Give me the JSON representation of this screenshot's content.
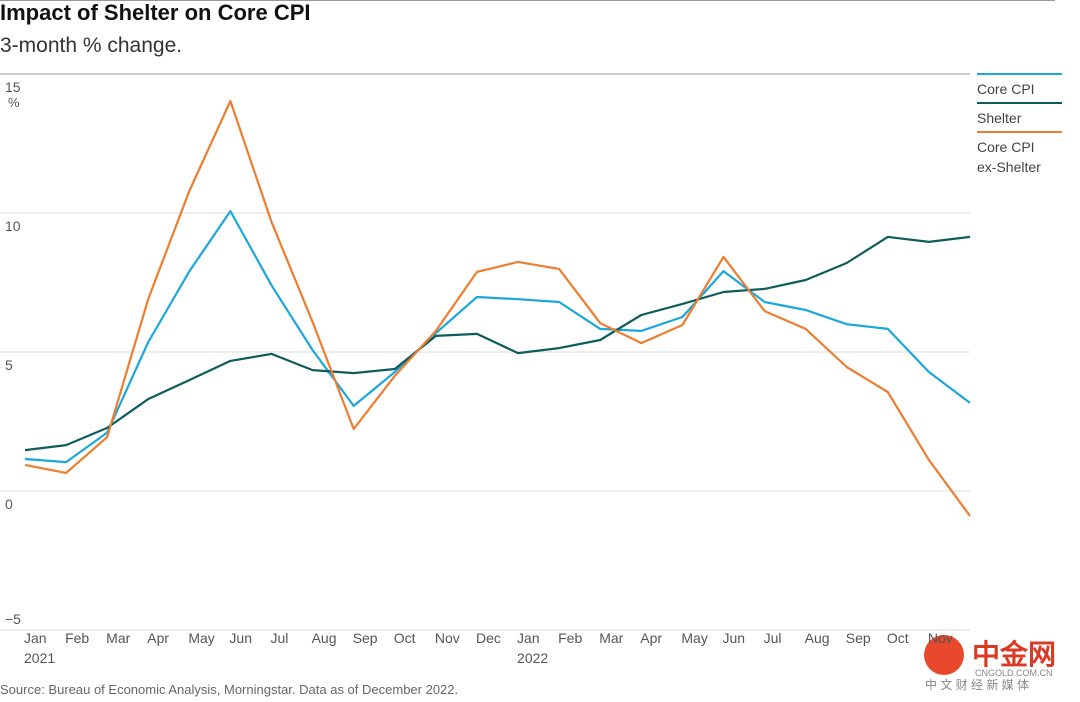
{
  "chart_data": {
    "type": "line",
    "title": "Impact of Shelter on Core CPI",
    "subtitle": "3-month % change.",
    "y_unit": "%",
    "source": "Source: Bureau of Economic Analysis, Morningstar. Data as of December 2022.",
    "categories": [
      "Jan",
      "Feb",
      "Mar",
      "Apr",
      "May",
      "Jun",
      "Jul",
      "Aug",
      "Sep",
      "Oct",
      "Nov",
      "Dec",
      "Jan",
      "Feb",
      "Mar",
      "Apr",
      "May",
      "Jun",
      "Jul",
      "Aug",
      "Sep",
      "Oct",
      "Nov",
      null
    ],
    "category_years": [
      "2021",
      null,
      null,
      null,
      null,
      null,
      null,
      null,
      null,
      null,
      null,
      null,
      "2022",
      null,
      null,
      null,
      null,
      null,
      null,
      null,
      null,
      null,
      null,
      null
    ],
    "ylim": [
      -5,
      15
    ],
    "yticks": [
      {
        "value": -5,
        "label": "−5"
      },
      0,
      5,
      10,
      15
    ],
    "grid": true,
    "legend": "right",
    "series": [
      {
        "name": "Core CPI",
        "color": "#1ba7dd",
        "values": [
          1.15,
          1.04,
          2.1,
          5.36,
          7.9,
          10.07,
          7.4,
          5.07,
          3.06,
          4.28,
          5.68,
          6.98,
          6.9,
          6.8,
          5.83,
          5.76,
          6.26,
          7.91,
          6.8,
          6.51,
          6.0,
          5.83,
          4.28,
          3.17
        ]
      },
      {
        "name": "Shelter",
        "color": "#0e5c5c",
        "values": [
          1.47,
          1.65,
          2.27,
          3.31,
          3.99,
          4.68,
          4.93,
          4.35,
          4.24,
          4.39,
          5.58,
          5.65,
          4.96,
          5.14,
          5.43,
          6.33,
          6.73,
          7.16,
          7.27,
          7.59,
          8.2,
          9.14,
          8.96,
          9.14
        ]
      },
      {
        "name": "Core CPI ex-Shelter",
        "color": "#ee7d2e",
        "values": [
          0.94,
          0.65,
          1.94,
          6.91,
          10.79,
          14.03,
          9.68,
          6.08,
          2.23,
          4.14,
          5.76,
          7.88,
          8.24,
          7.99,
          6.04,
          5.32,
          5.97,
          8.42,
          6.47,
          5.83,
          4.46,
          3.56,
          1.12,
          -0.9
        ]
      }
    ],
    "watermark": {
      "logo": "中金网",
      "domain": "CNGOLD.COM.CN",
      "tagline": "中 文 财 经 新 媒 体"
    }
  }
}
